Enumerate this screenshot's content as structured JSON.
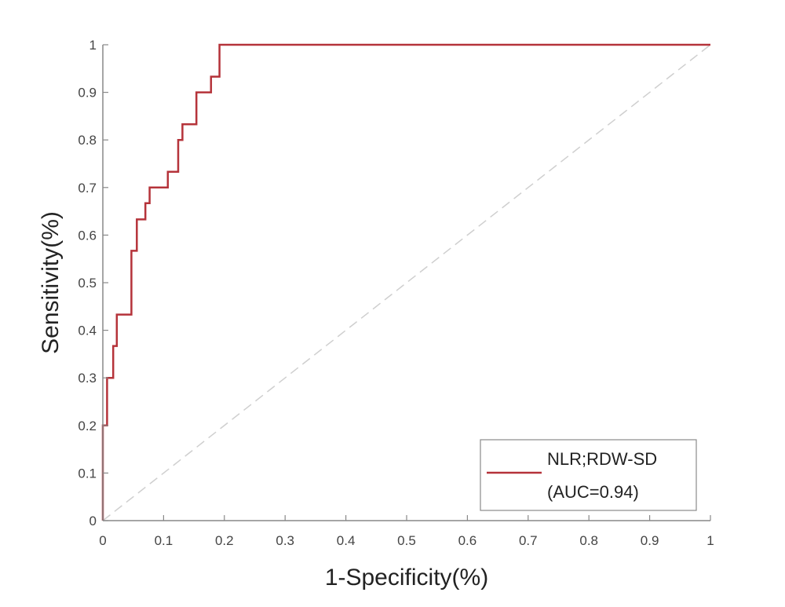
{
  "chart_data": {
    "type": "line",
    "title": "",
    "xlabel": "1-Specificity(%)",
    "ylabel": "Sensitivity(%)",
    "xlim": [
      0,
      1
    ],
    "ylim": [
      0,
      1
    ],
    "xticks": [
      "0",
      "0.1",
      "0.2",
      "0.3",
      "0.4",
      "0.5",
      "0.6",
      "0.7",
      "0.8",
      "0.9",
      "1"
    ],
    "yticks": [
      "0",
      "0.1",
      "0.2",
      "0.3",
      "0.4",
      "0.5",
      "0.6",
      "0.7",
      "0.8",
      "0.9",
      "1"
    ],
    "grid": false,
    "legend_position": "lower right",
    "series": [
      {
        "name": "NLR;RDW-SD",
        "label_line2": "(AUC=0.94)",
        "auc": 0.94,
        "color": "#b5333a",
        "style": "step",
        "x": [
          0,
          0,
          0.007,
          0.007,
          0.017,
          0.017,
          0.023,
          0.023,
          0.047,
          0.047,
          0.056,
          0.056,
          0.07,
          0.07,
          0.077,
          0.077,
          0.107,
          0.107,
          0.124,
          0.124,
          0.131,
          0.131,
          0.154,
          0.154,
          0.178,
          0.178,
          0.192,
          0.192,
          1
        ],
        "y": [
          0,
          0.2,
          0.2,
          0.3,
          0.3,
          0.367,
          0.367,
          0.433,
          0.433,
          0.567,
          0.567,
          0.633,
          0.633,
          0.667,
          0.667,
          0.7,
          0.7,
          0.733,
          0.733,
          0.8,
          0.8,
          0.833,
          0.833,
          0.9,
          0.9,
          0.933,
          0.933,
          1,
          1
        ]
      },
      {
        "name": "Reference",
        "color": "#cccccc",
        "style": "dashed",
        "x": [
          0,
          1
        ],
        "y": [
          0,
          1
        ]
      }
    ],
    "legend": {
      "line1": "NLR;RDW-SD",
      "line2": "(AUC=0.94)"
    }
  }
}
